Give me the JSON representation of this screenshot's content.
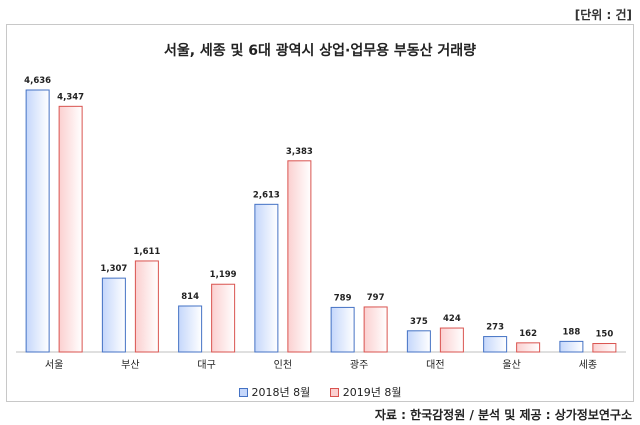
{
  "unit_label": "[단위 : 건]",
  "source": "자료 : 한국감정원 / 분석 및 제공 : 상가정보연구소",
  "colors": {
    "series0_fill": "#c5d7fb",
    "series0_stroke": "#4472c4",
    "series1_fill": "#fbd0d0",
    "series1_stroke": "#d9534f",
    "axis": "#bfbfbf"
  },
  "chart_data": {
    "type": "bar",
    "title": "서울, 세종 및 6대 광역시 상업·업무용 부동산 거래량",
    "categories": [
      "서울",
      "부산",
      "대구",
      "인천",
      "광주",
      "대전",
      "울산",
      "세종"
    ],
    "series": [
      {
        "name": "2018년 8월",
        "values": [
          4636,
          1307,
          814,
          2613,
          789,
          375,
          273,
          188
        ],
        "labels": [
          "4,636",
          "1,307",
          "814",
          "2,613",
          "789",
          "375",
          "273",
          "188"
        ]
      },
      {
        "name": "2019년 8월",
        "values": [
          4347,
          1611,
          1199,
          3383,
          797,
          424,
          162,
          150
        ],
        "labels": [
          "4,347",
          "1,611",
          "1,199",
          "3,383",
          "797",
          "424",
          "162",
          "150"
        ]
      }
    ],
    "ylim": [
      0,
      4636
    ],
    "legend_position": "bottom",
    "grid": false
  }
}
